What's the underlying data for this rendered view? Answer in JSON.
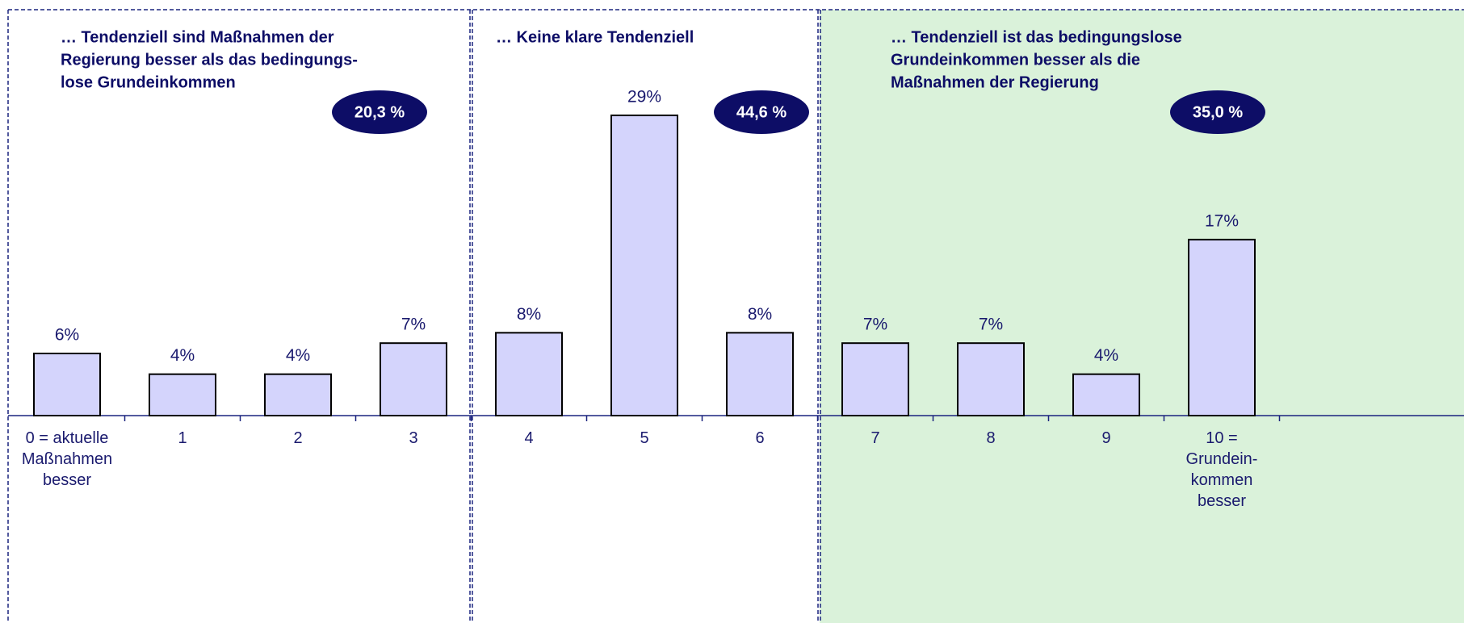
{
  "chart_data": {
    "type": "bar",
    "color": "#d4d4fc",
    "groups": [
      {
        "title": [
          "… Tendenziell sind Maßnahmen der",
          "Regierung besser als das bedingungs-",
          "lose  Grundeinkommen"
        ],
        "share": 20.3,
        "share_label": "20,3 %",
        "categories": [
          "0 = aktuelle Maßnahmen besser",
          "1",
          "2",
          "3"
        ],
        "values": [
          6,
          4,
          4,
          7
        ],
        "value_labels": [
          "6%",
          "4%",
          "4%",
          "7%"
        ]
      },
      {
        "title": [
          "… Keine klare Tendenziell"
        ],
        "share": 44.6,
        "share_label": "44,6 %",
        "categories": [
          "4",
          "5",
          "6"
        ],
        "values": [
          8,
          29,
          8
        ],
        "value_labels": [
          "8%",
          "29%",
          "8%"
        ]
      },
      {
        "title": [
          "… Tendenziell ist das bedingungslose",
          "Grundeinkommen besser als die",
          "Maßnahmen der  Regierung"
        ],
        "share": 35.0,
        "share_label": "35,0 %",
        "categories": [
          "7",
          "8",
          "9",
          "10 = Grundein-kommen besser"
        ],
        "values": [
          7,
          7,
          4,
          17
        ],
        "value_labels": [
          "7%",
          "7%",
          "4%",
          "17%"
        ]
      }
    ]
  }
}
